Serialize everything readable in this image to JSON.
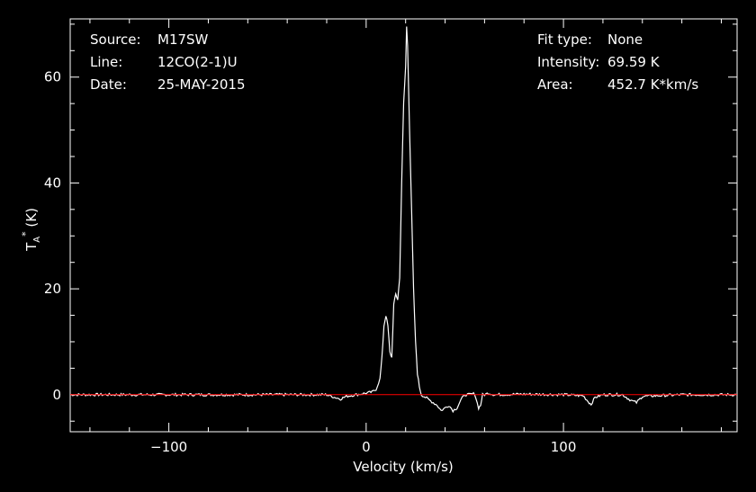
{
  "info_left": {
    "source_label": "Source:",
    "source_value": "M17SW",
    "line_label": "Line:",
    "line_value": "12CO(2-1)U",
    "date_label": "Date:",
    "date_value": "25-MAY-2015"
  },
  "info_right": {
    "fit_label": "Fit type:",
    "fit_value": "None",
    "intensity_label": "Intensity:",
    "intensity_value": "69.59 K",
    "area_label": "Area:",
    "area_value": "452.7 K*km/s"
  },
  "colors": {
    "background": "#000000",
    "axes": "#ffffff",
    "spectrum": "#ffffff",
    "baseline": "#ff0000"
  },
  "chart_data": {
    "type": "line",
    "xlabel": "Velocity (km/s)",
    "ylabel": "T_A* (K)",
    "xlim": [
      -150,
      188
    ],
    "ylim": [
      -7,
      71
    ],
    "xticks": [
      -100,
      0,
      100
    ],
    "xtick_labels": [
      "−100",
      "0",
      "100"
    ],
    "yticks": [
      0,
      20,
      40,
      60
    ],
    "ytick_labels": [
      "0",
      "20",
      "40",
      "60"
    ],
    "baseline_y": 0,
    "series": [
      {
        "x": [
          -150,
          -20,
          -16,
          -13,
          -10,
          -5,
          0,
          3,
          5,
          7,
          8,
          9,
          10,
          11,
          12,
          13,
          14,
          15,
          16,
          17,
          18,
          19,
          20,
          20.5,
          21,
          21.5,
          22,
          23,
          24,
          25,
          26,
          27,
          28,
          30,
          32,
          34,
          36,
          38,
          40,
          42,
          44,
          46,
          48,
          50,
          52,
          55,
          57,
          58,
          59,
          60,
          62,
          65,
          80,
          100,
          110,
          113,
          114,
          116,
          120,
          130,
          133,
          135,
          137,
          140,
          160,
          188
        ],
        "y": [
          0,
          0,
          -0.5,
          -0.8,
          -0.3,
          0,
          0.3,
          0.5,
          1,
          3,
          7,
          13,
          15,
          13,
          8,
          7,
          17,
          19,
          18,
          22,
          40,
          55,
          62,
          69.5,
          66,
          58,
          50,
          35,
          20,
          10,
          4,
          1.5,
          0,
          -0.5,
          -1,
          -1.5,
          -2,
          -3,
          -2.5,
          -2,
          -3,
          -2.5,
          -1,
          0,
          0,
          0.2,
          -2.5,
          -2,
          0,
          0,
          0.3,
          0,
          0.1,
          0,
          -0.2,
          -1.5,
          -1.8,
          -0.5,
          0,
          0,
          -0.8,
          -1.2,
          -1.5,
          -0.3,
          0,
          0
        ]
      }
    ]
  }
}
